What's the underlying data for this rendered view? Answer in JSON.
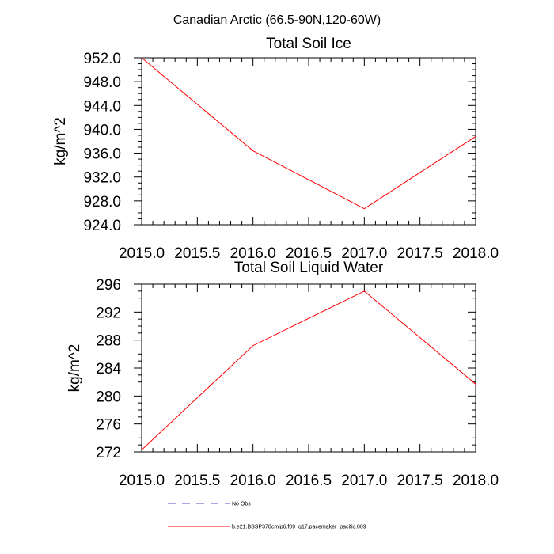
{
  "figure_title": "Canadian Arctic (66.5-90N,120-60W)",
  "legend": {
    "items": [
      {
        "label": "No Obs",
        "color": "#5050c8",
        "style": "dashed"
      },
      {
        "label": "b.e21.BSSP370cmip6.f09_g17.pacemaker_pacific.009",
        "color": "#ff0000",
        "style": "solid"
      }
    ]
  },
  "chart_data": [
    {
      "type": "line",
      "title": "Total Soil Ice",
      "xlabel": "",
      "ylabel": "kg/m^2",
      "xlim": [
        2015.0,
        2018.0
      ],
      "ylim": [
        924.0,
        952.0
      ],
      "xticks": [
        "2015.0",
        "2015.5",
        "2016.0",
        "2016.5",
        "2017.0",
        "2017.5",
        "2018.0"
      ],
      "yticks": [
        "924.0",
        "928.0",
        "932.0",
        "936.0",
        "940.0",
        "944.0",
        "948.0",
        "952.0"
      ],
      "grid": false,
      "series": [
        {
          "name": "b.e21.BSSP370cmip6.f09_g17.pacemaker_pacific.009",
          "color": "#ff0000",
          "x": [
            2015,
            2016,
            2017,
            2018
          ],
          "y": [
            952.0,
            936.4,
            926.7,
            938.8
          ]
        }
      ]
    },
    {
      "type": "line",
      "title": "Total Soil Liquid Water",
      "xlabel": "",
      "ylabel": "kg/m^2",
      "xlim": [
        2015.0,
        2018.0
      ],
      "ylim": [
        272,
        296
      ],
      "xticks": [
        "2015.0",
        "2015.5",
        "2016.0",
        "2016.5",
        "2017.0",
        "2017.5",
        "2018.0"
      ],
      "yticks": [
        "272",
        "276",
        "280",
        "284",
        "288",
        "292",
        "296"
      ],
      "grid": false,
      "series": [
        {
          "name": "b.e21.BSSP370cmip6.f09_g17.pacemaker_pacific.009",
          "color": "#ff0000",
          "x": [
            2015,
            2016,
            2017,
            2018
          ],
          "y": [
            272.3,
            287.2,
            295.0,
            281.7
          ]
        }
      ]
    }
  ]
}
